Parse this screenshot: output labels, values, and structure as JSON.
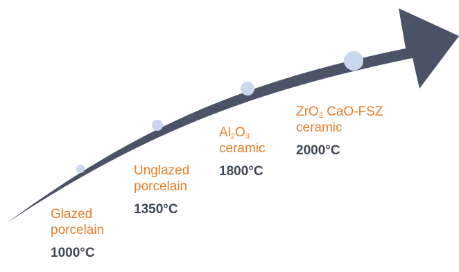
{
  "colors": {
    "arrow": "#4a5466",
    "dot": "#c9d7f0",
    "label": "#e97c25",
    "temperature": "#3c4655"
  },
  "stages": [
    {
      "name_line1": "Glazed",
      "name_line2": "porcelain",
      "temperature": "1000°C"
    },
    {
      "name_line1": "Unglazed",
      "name_line2": "porcelain",
      "temperature": "1350°C"
    },
    {
      "formula_parts": [
        "Al",
        "2",
        "O",
        "3"
      ],
      "name_line2": "ceramic",
      "temperature": "1800°C"
    },
    {
      "formula_parts": [
        "ZrO",
        "2",
        " CaO-FSZ"
      ],
      "name_line2": "ceramic",
      "temperature": "2000°C"
    }
  ]
}
